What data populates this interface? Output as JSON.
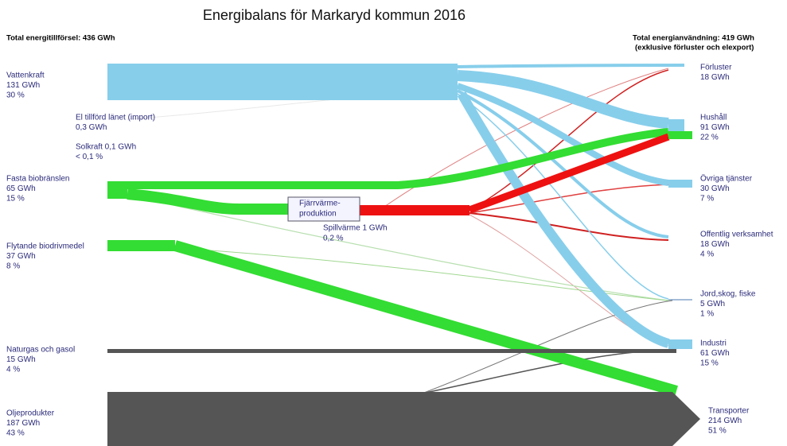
{
  "title": "Energibalans för Markaryd kommun 2016",
  "left_header": "Total energitillförsel: 436 GWh",
  "right_header": [
    "Total energianvändning: 419 GWh",
    "(exklusive förluster och elexport)"
  ],
  "sources": [
    {
      "name": "Vattenkraft",
      "amount": "131 GWh",
      "share": "30 %"
    },
    {
      "name": "El tillförd länet (import)",
      "amount": "0,3 GWh"
    },
    {
      "name": "Solkraft  0,1 GWh",
      "share": "< 0,1 %"
    },
    {
      "name": "Fasta biobränslen",
      "amount": "65 GWh",
      "share": "15 %"
    },
    {
      "name": "Flytande biodrivmedel",
      "amount": "37 GWh",
      "share": "8 %"
    },
    {
      "name": "Naturgas och gasol",
      "amount": "15 GWh",
      "share": "4 %"
    },
    {
      "name": "Oljeprodukter",
      "amount": "187 GWh",
      "share": "43 %"
    }
  ],
  "conversion": {
    "lines": [
      "Fjärrvärme-",
      "produktion"
    ],
    "waste_heat": "Spillvärme 1 GWh",
    "waste_heat_share": "0,2 %"
  },
  "sinks": [
    {
      "name": "Förluster",
      "amount": "18 GWh"
    },
    {
      "name": "Hushåll",
      "amount": "91 GWh",
      "share": "22 %"
    },
    {
      "name": "Övriga tjänster",
      "amount": "30 GWh",
      "share": "7 %"
    },
    {
      "name": "Offentlig verksamhet",
      "amount": "18 GWh",
      "share": "4 %"
    },
    {
      "name": "Jord,skog, fiske",
      "amount": "5 GWh",
      "share": "1 %"
    },
    {
      "name": "Industri",
      "amount": "61 GWh",
      "share": "15 %"
    },
    {
      "name": "Transporter",
      "amount": "214 GWh",
      "share": "51 %"
    }
  ]
}
